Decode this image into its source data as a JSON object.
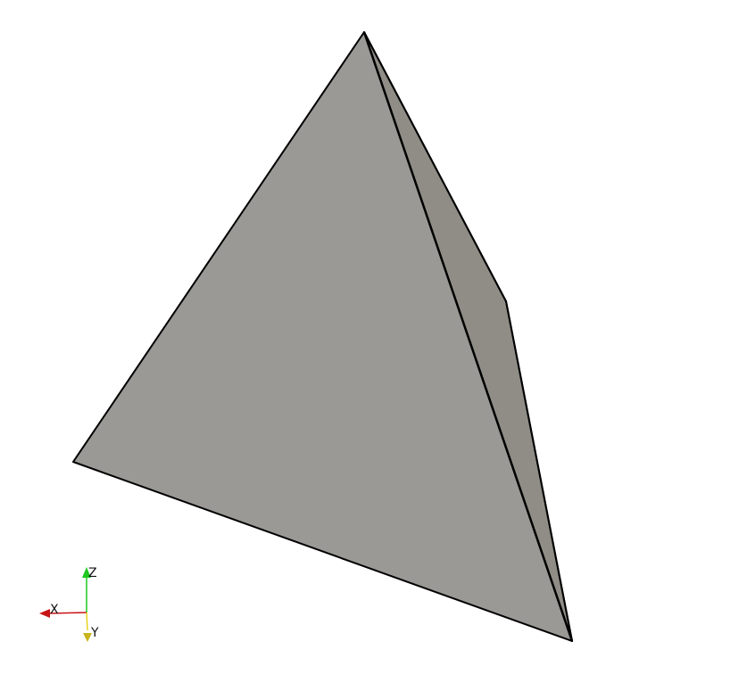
{
  "viewport": {
    "background": "#ffffff"
  },
  "model": {
    "shape": "tetrahedron",
    "front_face_color": "#9a9995",
    "side_face_color": "#8f8d86",
    "edge_color": "#000000"
  },
  "orientation_axes": {
    "x": {
      "label": "X",
      "color": "#c81414"
    },
    "y": {
      "label": "Y",
      "color": "#e6d21e"
    },
    "z": {
      "label": "Z",
      "color": "#1ec81e"
    }
  }
}
